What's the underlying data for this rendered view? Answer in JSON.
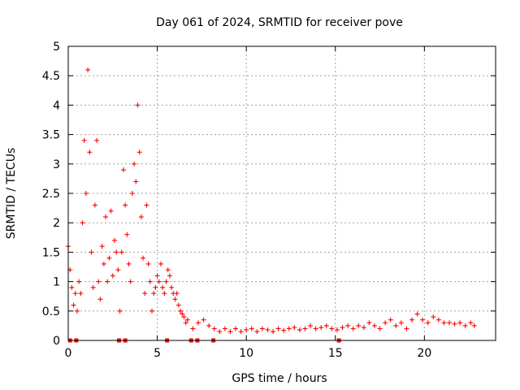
{
  "chart_data": {
    "type": "scatter",
    "title": "Day 061 of 2024, SRMTID for receiver pove",
    "xlabel": "GPS time / hours",
    "ylabel": "SRMTID / TECUs",
    "xlim": [
      0,
      24
    ],
    "ylim": [
      0,
      5
    ],
    "x_ticks": [
      "0",
      "5",
      "10",
      "15",
      "20"
    ],
    "y_ticks": [
      "0",
      "0.5",
      "1",
      "1.5",
      "2",
      "2.5",
      "3",
      "3.5",
      "4",
      "4.5",
      "5"
    ],
    "grid": true,
    "marker": "plus",
    "color": "#ff0000",
    "zero_markers": {
      "marker": "square",
      "x": [
        0.1,
        0.45,
        2.85,
        3.2,
        5.55,
        6.9,
        7.25,
        8.15,
        15.2
      ],
      "y": [
        0,
        0,
        0,
        0,
        0,
        0,
        0,
        0,
        0
      ]
    },
    "series": [
      {
        "x": [
          0.0,
          0.1,
          0.2,
          0.3,
          0.4,
          0.5,
          0.6,
          0.7,
          0.8,
          0.9,
          1.0,
          1.1,
          1.2,
          1.3,
          1.4,
          1.5,
          1.6,
          1.7,
          1.8,
          1.9,
          2.0,
          2.1,
          2.2,
          2.3,
          2.4,
          2.5,
          2.6,
          2.7,
          2.8,
          2.9,
          3.0,
          3.1,
          3.2,
          3.3,
          3.4,
          3.5,
          3.6,
          3.7,
          3.8,
          3.9,
          4.0,
          4.1,
          4.2,
          4.3,
          4.4,
          4.5,
          4.6,
          4.7,
          4.8,
          4.9,
          5.0,
          5.1,
          5.2,
          5.3,
          5.4,
          5.5,
          5.6,
          5.7,
          5.8,
          5.9,
          6.0,
          6.1,
          6.2,
          6.3,
          6.4,
          6.5,
          6.6,
          6.7,
          7.0,
          7.3,
          7.6,
          7.9,
          8.2,
          8.5,
          8.8,
          9.1,
          9.4,
          9.7,
          10.0,
          10.3,
          10.6,
          10.9,
          11.2,
          11.5,
          11.8,
          12.1,
          12.4,
          12.7,
          13.0,
          13.3,
          13.6,
          13.9,
          14.2,
          14.5,
          14.8,
          15.1,
          15.4,
          15.7,
          16.0,
          16.3,
          16.6,
          16.9,
          17.2,
          17.5,
          17.8,
          18.1,
          18.4,
          18.7,
          19.0,
          19.3,
          19.6,
          19.9,
          20.2,
          20.5,
          20.8,
          21.1,
          21.4,
          21.7,
          22.0,
          22.3,
          22.6,
          22.8
        ],
        "y": [
          1.6,
          1.2,
          0.9,
          0.6,
          0.8,
          0.5,
          1.0,
          0.8,
          2.0,
          3.4,
          2.5,
          4.6,
          3.2,
          1.5,
          0.9,
          2.3,
          3.4,
          1.0,
          0.7,
          1.6,
          1.3,
          2.1,
          1.0,
          1.4,
          2.2,
          1.1,
          1.7,
          1.5,
          1.2,
          0.5,
          1.5,
          2.9,
          2.3,
          1.8,
          1.3,
          1.0,
          2.5,
          3.0,
          2.7,
          4.0,
          3.2,
          2.1,
          1.4,
          0.8,
          2.3,
          1.3,
          1.0,
          0.5,
          0.8,
          0.9,
          1.1,
          1.0,
          1.3,
          0.9,
          0.8,
          1.0,
          1.2,
          1.1,
          0.9,
          0.8,
          0.7,
          0.8,
          0.6,
          0.5,
          0.45,
          0.4,
          0.3,
          0.35,
          0.2,
          0.3,
          0.35,
          0.25,
          0.2,
          0.15,
          0.2,
          0.15,
          0.2,
          0.15,
          0.18,
          0.2,
          0.15,
          0.2,
          0.18,
          0.15,
          0.2,
          0.17,
          0.2,
          0.22,
          0.18,
          0.2,
          0.25,
          0.2,
          0.22,
          0.25,
          0.2,
          0.18,
          0.22,
          0.25,
          0.2,
          0.25,
          0.22,
          0.3,
          0.25,
          0.2,
          0.3,
          0.35,
          0.25,
          0.3,
          0.2,
          0.35,
          0.45,
          0.35,
          0.3,
          0.4,
          0.35,
          0.3,
          0.3,
          0.28,
          0.3,
          0.25,
          0.3,
          0.25
        ]
      }
    ]
  }
}
